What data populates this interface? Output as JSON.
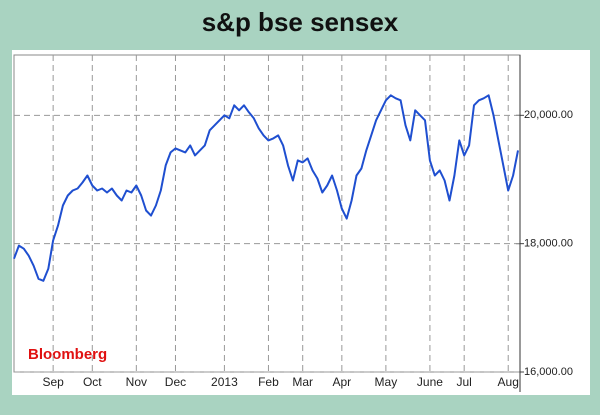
{
  "chart_data": {
    "type": "line",
    "title": "s&p bse sensex",
    "source": "Bloomberg",
    "color": "#1f4fd0",
    "grid": true,
    "y_axis_side": "right",
    "ylim": [
      16000,
      20940
    ],
    "yticks": [
      {
        "value": 16000,
        "label": "16,000.00"
      },
      {
        "value": 18000,
        "label": "18,000.00"
      },
      {
        "value": 20000,
        "label": "20,000.00"
      }
    ],
    "categories": [
      null,
      null,
      null,
      null,
      null,
      null,
      null,
      null,
      "Sep",
      null,
      null,
      null,
      null,
      null,
      null,
      null,
      "Oct",
      null,
      null,
      null,
      null,
      null,
      null,
      null,
      null,
      "Nov",
      null,
      null,
      null,
      null,
      null,
      null,
      null,
      "Dec",
      null,
      null,
      null,
      null,
      null,
      null,
      null,
      null,
      null,
      "2013",
      null,
      null,
      null,
      null,
      null,
      null,
      null,
      null,
      "Feb",
      null,
      null,
      null,
      null,
      null,
      null,
      "Mar",
      null,
      null,
      null,
      null,
      null,
      null,
      null,
      "Apr",
      null,
      null,
      null,
      null,
      null,
      null,
      null,
      null,
      "May",
      null,
      null,
      null,
      null,
      null,
      null,
      null,
      null,
      "June",
      null,
      null,
      null,
      null,
      null,
      null,
      "Jul",
      null,
      null,
      null,
      null,
      null,
      null,
      null,
      null,
      "Aug",
      null,
      null
    ],
    "values": [
      17766,
      17969,
      17922,
      17812,
      17656,
      17453,
      17422,
      17609,
      18047,
      18281,
      18594,
      18750,
      18828,
      18859,
      18953,
      19062,
      18906,
      18828,
      18859,
      18797,
      18859,
      18750,
      18672,
      18828,
      18797,
      18906,
      18750,
      18516,
      18437,
      18594,
      18828,
      19219,
      19422,
      19484,
      19453,
      19422,
      19531,
      19375,
      19453,
      19531,
      19766,
      19844,
      19922,
      20000,
      19953,
      20156,
      20078,
      20156,
      20047,
      19953,
      19797,
      19687,
      19609,
      19641,
      19687,
      19531,
      19219,
      18984,
      19297,
      19266,
      19328,
      19141,
      19016,
      18797,
      18906,
      19062,
      18828,
      18547,
      18391,
      18672,
      19062,
      19172,
      19453,
      19687,
      19922,
      20078,
      20234,
      20312,
      20266,
      20234,
      19844,
      19609,
      20078,
      20000,
      19922,
      19297,
      19062,
      19141,
      18984,
      18672,
      19062,
      19609,
      19375,
      19531,
      20156,
      20234,
      20266,
      20312,
      20000,
      19609,
      19219,
      18828,
      19062,
      19453
    ]
  }
}
